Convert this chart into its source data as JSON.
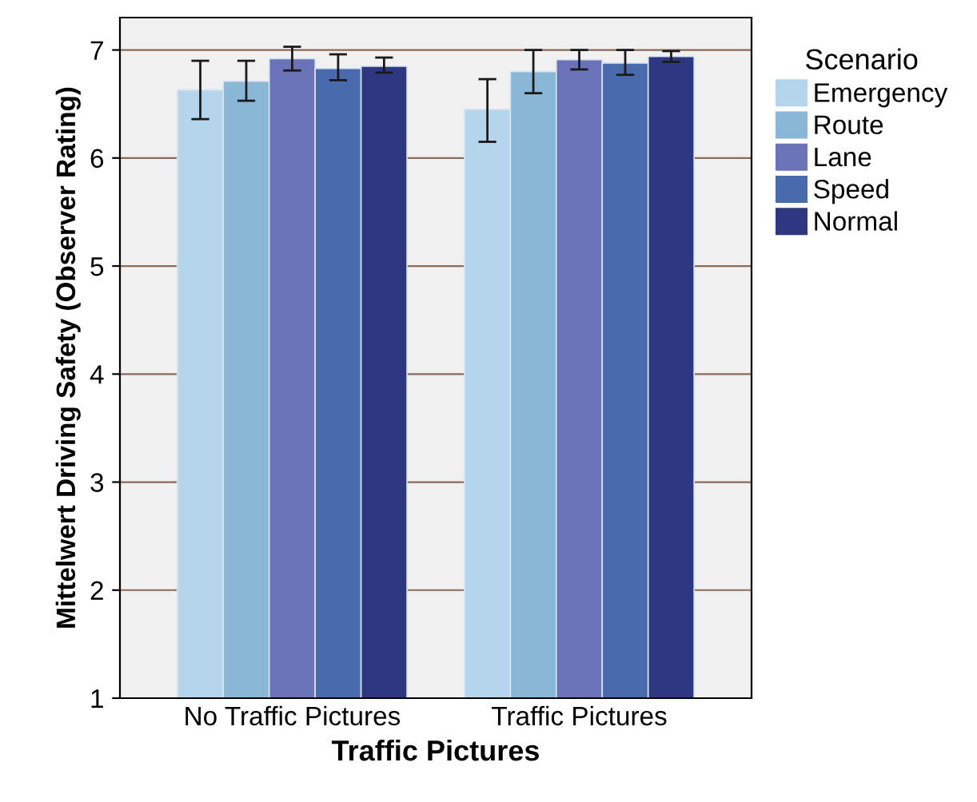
{
  "chart_data": {
    "type": "bar",
    "xlabel": "Traffic Pictures",
    "ylabel": "Mittelwert Driving Safety (Observer Rating)",
    "legend_title": "Scenario",
    "categories": [
      "No Traffic Pictures",
      "Traffic Pictures"
    ],
    "series": [
      {
        "name": "Emergency",
        "color": "#b5d5ec",
        "values": [
          6.63,
          6.45
        ],
        "errors": [
          [
            6.36,
            6.9
          ],
          [
            6.15,
            6.73
          ]
        ]
      },
      {
        "name": "Route",
        "color": "#8ab6d8",
        "values": [
          6.71,
          6.8
        ],
        "errors": [
          [
            6.53,
            6.9
          ],
          [
            6.6,
            7.0
          ]
        ]
      },
      {
        "name": "Lane",
        "color": "#6a72b8",
        "values": [
          6.92,
          6.91
        ],
        "errors": [
          [
            6.81,
            7.03
          ],
          [
            6.82,
            7.0
          ]
        ]
      },
      {
        "name": "Speed",
        "color": "#4a6aae",
        "values": [
          6.83,
          6.88
        ],
        "errors": [
          [
            6.72,
            6.96
          ],
          [
            6.77,
            7.0
          ]
        ]
      },
      {
        "name": "Normal",
        "color": "#2e3880",
        "values": [
          6.85,
          6.94
        ],
        "errors": [
          [
            6.79,
            6.93
          ],
          [
            6.89,
            6.99
          ]
        ]
      }
    ],
    "ylim": [
      1,
      7.3
    ],
    "yticks": [
      1,
      2,
      3,
      4,
      5,
      6,
      7
    ],
    "grid": "y",
    "legend": "top right"
  }
}
